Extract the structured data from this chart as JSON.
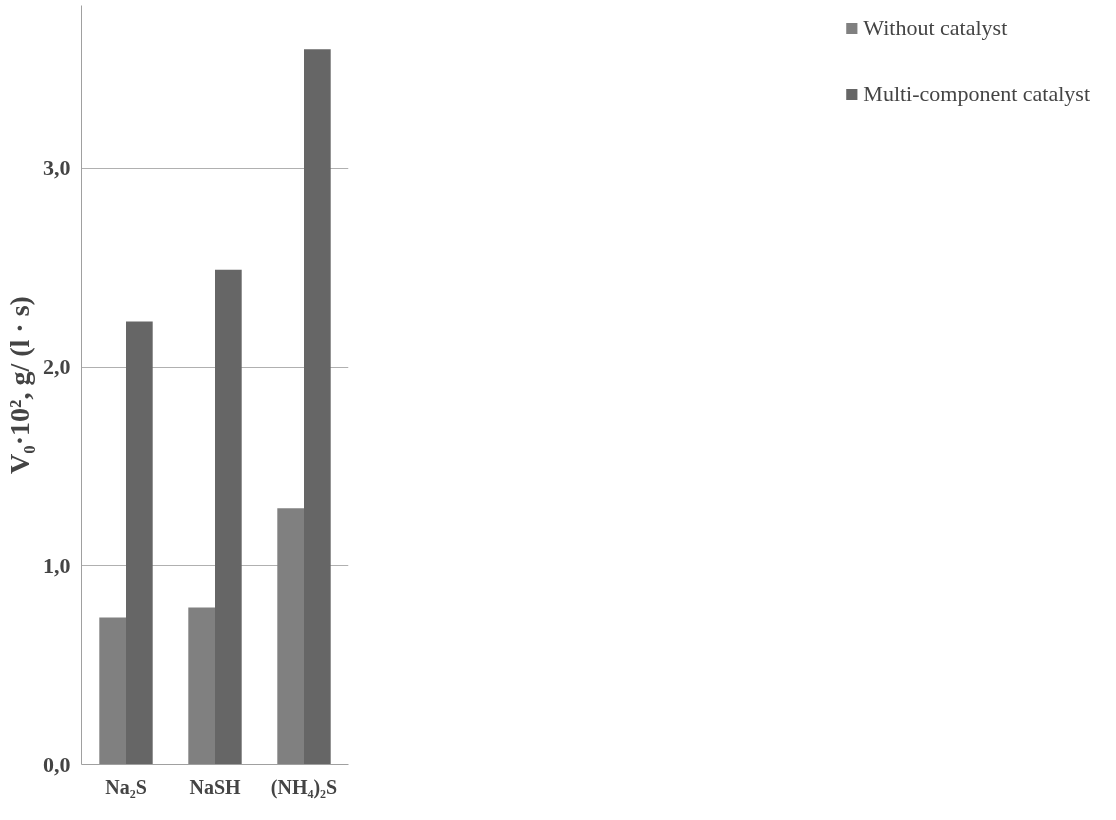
{
  "chart_data": {
    "type": "bar",
    "ylabel": "V₀·10², g/ (l · s)",
    "categories": [
      "Na₂S",
      "NaSH",
      "(NH₄)₂S"
    ],
    "series": [
      {
        "name": "Without catalyst",
        "color": "#808080",
        "values": [
          0.74,
          0.79,
          1.29
        ]
      },
      {
        "name": "Multi-component catalyst",
        "color": "#666666",
        "values": [
          2.23,
          2.49,
          3.6
        ]
      }
    ],
    "ylim": [
      0,
      3.82
    ],
    "yticks": [
      {
        "value": 0,
        "label": "0,0"
      },
      {
        "value": 1,
        "label": "1,0"
      },
      {
        "value": 2,
        "label": "2,0"
      },
      {
        "value": 3,
        "label": "3,0"
      }
    ],
    "grid": "y",
    "legend": "right"
  }
}
